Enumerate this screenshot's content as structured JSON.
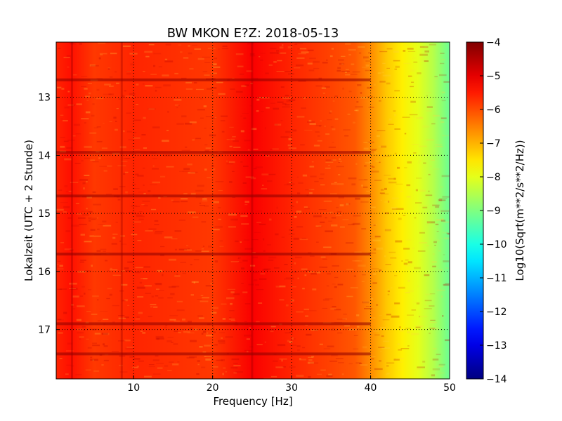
{
  "chart_data": {
    "type": "heatmap",
    "title": "BW MKON E?Z: 2018-05-13",
    "xlabel": "Frequency [Hz]",
    "ylabel": "Lokalzeit (UTC + 2 Stunde)",
    "xlim": [
      0.2,
      50
    ],
    "ylim": [
      17.85,
      12.05
    ],
    "y_inverted": true,
    "x_ticks": [
      10,
      20,
      30,
      40,
      50
    ],
    "x_tick_labels": [
      "10",
      "20",
      "30",
      "40",
      "50"
    ],
    "y_ticks": [
      13,
      14,
      15,
      16,
      17
    ],
    "y_tick_labels": [
      "13",
      "14",
      "15",
      "16",
      "17"
    ],
    "grid": true,
    "grid_style": "dotted",
    "colormap": "jet",
    "colorbar": {
      "label": "Log10(Sqrt(m**2/s**2/Hz))",
      "min": -14,
      "max": -4,
      "ticks": [
        -4,
        -5,
        -6,
        -7,
        -8,
        -9,
        -10,
        -11,
        -12,
        -13,
        -14
      ],
      "tick_labels": [
        "−4",
        "−5",
        "−6",
        "−7",
        "−8",
        "−9",
        "−10",
        "−11",
        "−12",
        "−13",
        "−14"
      ]
    },
    "spectrum_profile": {
      "frequency_hz": [
        0,
        2,
        5,
        10,
        20,
        25,
        30,
        35,
        38,
        40,
        42,
        44,
        46,
        48,
        50
      ],
      "log_amplitude": [
        -5.6,
        -5.4,
        -5.8,
        -5.6,
        -5.8,
        -5.2,
        -5.6,
        -5.9,
        -6.1,
        -6.6,
        -7.2,
        -7.6,
        -8.0,
        -8.5,
        -9.2
      ]
    },
    "dark_horizontal_bands_hours": [
      12.7,
      13.95,
      14.7,
      15.7,
      16.9,
      17.42
    ],
    "dark_vertical_lines_hz": [
      2.2,
      8.5,
      25
    ]
  }
}
